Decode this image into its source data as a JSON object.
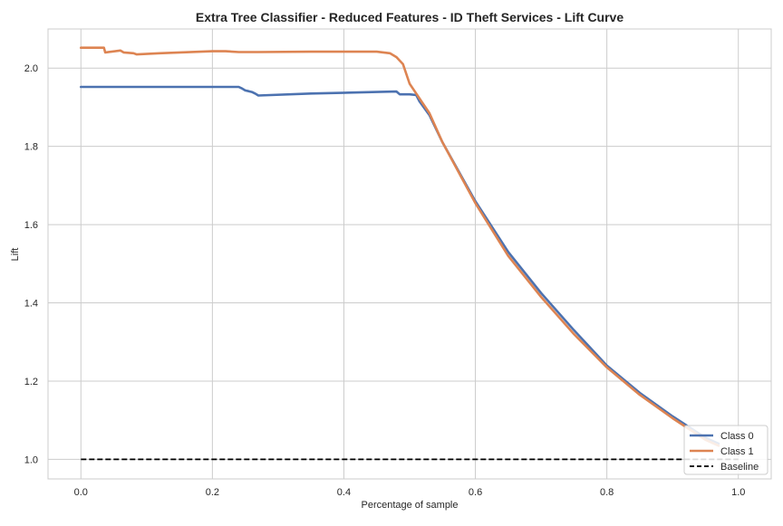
{
  "chart_data": {
    "type": "line",
    "title": "Extra Tree Classifier - Reduced Features - ID Theft Services - Lift Curve",
    "xlabel": "Percentage of sample",
    "ylabel": "Lift",
    "xlim": [
      -0.05,
      1.05
    ],
    "ylim": [
      0.95,
      2.1
    ],
    "x_ticks": [
      "0.0",
      "0.2",
      "0.4",
      "0.6",
      "0.8",
      "1.0"
    ],
    "y_ticks": [
      "1.0",
      "1.2",
      "1.4",
      "1.6",
      "1.8",
      "2.0"
    ],
    "grid": true,
    "legend_position": "bottom-right",
    "series": [
      {
        "name": "Class 0",
        "color": "#4c72b0",
        "x": [
          0.0,
          0.24,
          0.245,
          0.25,
          0.255,
          0.26,
          0.265,
          0.27,
          0.35,
          0.45,
          0.48,
          0.485,
          0.5,
          0.51,
          0.515,
          0.53,
          0.55,
          0.6,
          0.65,
          0.7,
          0.75,
          0.8,
          0.85,
          0.9,
          0.95,
          0.97
        ],
        "y": [
          1.952,
          1.952,
          1.948,
          1.943,
          1.941,
          1.939,
          1.935,
          1.93,
          1.935,
          1.939,
          1.94,
          1.933,
          1.933,
          1.931,
          1.915,
          1.88,
          1.81,
          1.66,
          1.53,
          1.425,
          1.33,
          1.24,
          1.17,
          1.11,
          1.055,
          1.04
        ]
      },
      {
        "name": "Class 1",
        "color": "#dd8452",
        "x": [
          0.0,
          0.035,
          0.037,
          0.06,
          0.065,
          0.08,
          0.085,
          0.12,
          0.2,
          0.22,
          0.24,
          0.27,
          0.35,
          0.45,
          0.47,
          0.48,
          0.49,
          0.5,
          0.51,
          0.52,
          0.53,
          0.55,
          0.6,
          0.65,
          0.7,
          0.75,
          0.8,
          0.85,
          0.9,
          0.95,
          0.97
        ],
        "y": [
          2.052,
          2.052,
          2.04,
          2.045,
          2.04,
          2.038,
          2.035,
          2.038,
          2.043,
          2.043,
          2.041,
          2.041,
          2.042,
          2.042,
          2.038,
          2.028,
          2.01,
          1.96,
          1.935,
          1.91,
          1.885,
          1.81,
          1.655,
          1.52,
          1.415,
          1.32,
          1.235,
          1.165,
          1.105,
          1.05,
          1.035
        ]
      },
      {
        "name": "Baseline",
        "color": "#000000",
        "dashed": true,
        "x": [
          0.0,
          1.0
        ],
        "y": [
          1.0,
          1.0
        ]
      }
    ]
  }
}
